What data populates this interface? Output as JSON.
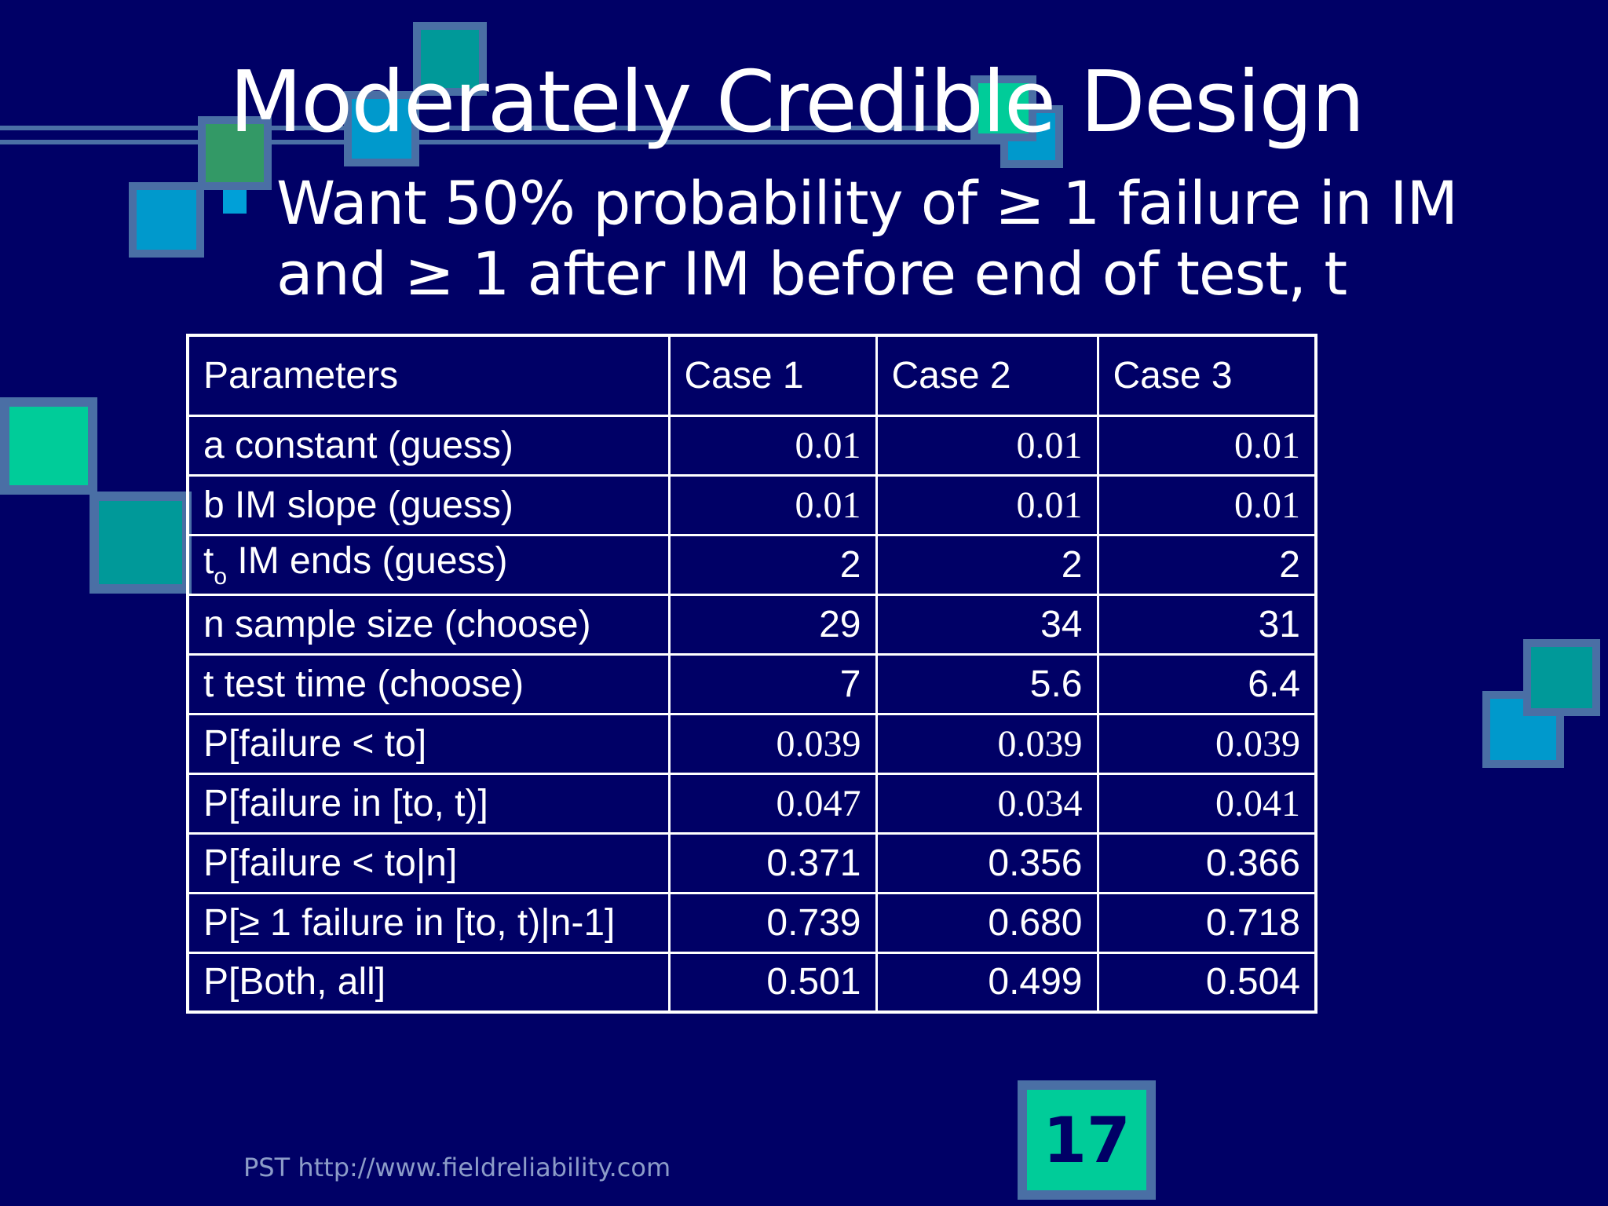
{
  "slide": {
    "title": "Moderately Credible Design",
    "bullet": {
      "line1": "Want 50% probability of ≥ 1 failure in IM",
      "line2": "and ≥ 1 after IM before end of test, t"
    },
    "footer": "PST http://www.fieldreliability.com",
    "slide_number": "17"
  },
  "colors": {
    "background": "#000066",
    "text": "#ffffff",
    "accent_green": "#00cc99",
    "accent_teal": "#009999",
    "accent_blue": "#0099cc",
    "accent_olive": "#339966",
    "frame": "#4a6fa5"
  },
  "table": {
    "headers": [
      "Parameters",
      "Case 1",
      "Case 2",
      "Case 3"
    ],
    "rows": [
      {
        "label": "a constant (guess)",
        "values": [
          "0.01",
          "0.01",
          "0.01"
        ]
      },
      {
        "label": "b IM slope (guess)",
        "values": [
          "0.01",
          "0.01",
          "0.01"
        ]
      },
      {
        "label_prefix": "t",
        "label_sub": "o",
        "label": " IM ends (guess)",
        "values": [
          "2",
          "2",
          "2"
        ]
      },
      {
        "label": "n sample size (choose)",
        "values": [
          "29",
          "34",
          "31"
        ]
      },
      {
        "label": "t test time (choose)",
        "values": [
          "7",
          "5.6",
          "6.4"
        ]
      },
      {
        "label": "P[failure < to]",
        "values": [
          "0.039",
          "0.039",
          "0.039"
        ]
      },
      {
        "label": "P[failure in [to, t)]",
        "values": [
          "0.047",
          "0.034",
          "0.041"
        ]
      },
      {
        "label": "P[failure < to|n]",
        "values": [
          "0.371",
          "0.356",
          "0.366"
        ]
      },
      {
        "label": "P[≥ 1 failure in [to, t)|n-1]",
        "values": [
          "0.739",
          "0.680",
          "0.718"
        ]
      },
      {
        "label": "P[Both, all]",
        "values": [
          "0.501",
          "0.499",
          "0.504"
        ]
      }
    ]
  }
}
